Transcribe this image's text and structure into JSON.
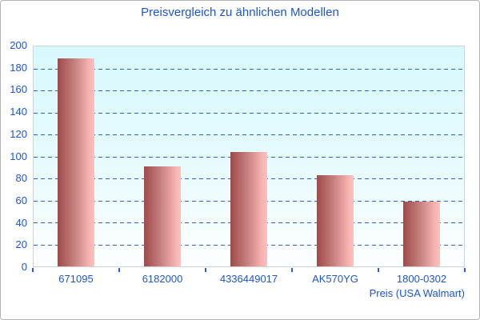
{
  "title": "Preisvergleich zu ähnlichen Modellen",
  "chart_data": {
    "type": "bar",
    "title": "Preisvergleich zu ähnlichen Modellen",
    "categories": [
      "671095",
      "6182000",
      "4336449017",
      "AK570YG",
      "1800-0302"
    ],
    "values": [
      189,
      91,
      104,
      83,
      59
    ],
    "xlabel": "Preis (USA Walmart)",
    "ylabel": "",
    "ylim": [
      0,
      200
    ],
    "ytick_step": 20,
    "grid": "horizontal-dashed",
    "legend": "none",
    "colors": {
      "text_blue": "#1d56d2",
      "gridline_blue": "#2e5ec8",
      "bar_gradient_dark": "#9e4b4b",
      "bar_gradient_light": "#fdc2be",
      "plot_bg_top": "#d7fafe",
      "plot_bg_bottom": "#fdffff",
      "plot_border": "#c9d6da",
      "page_border": "#b3b3b3"
    }
  }
}
